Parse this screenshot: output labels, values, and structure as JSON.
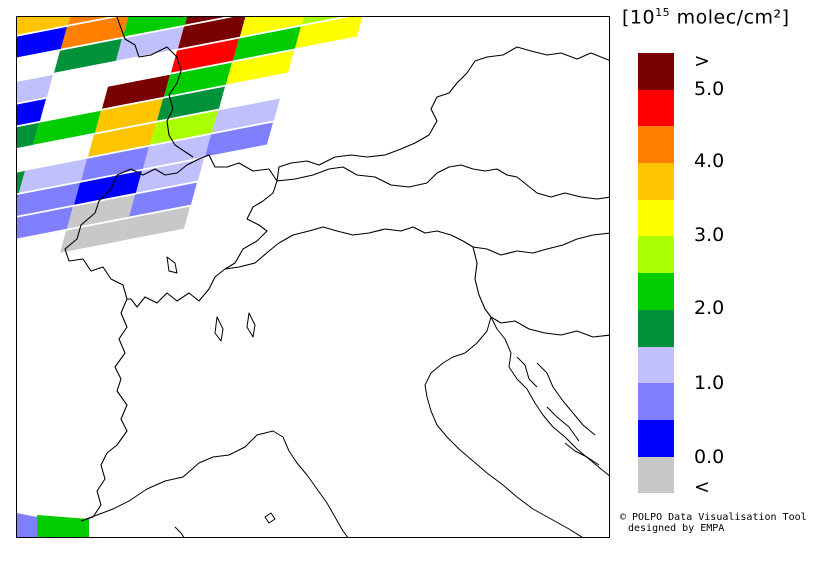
{
  "legend": {
    "unit_prefix": "[10",
    "unit_exp": "15",
    "unit_suffix": " molec/cm²]",
    "colors": [
      "#7a0000",
      "#ff0000",
      "#ff8000",
      "#ffc400",
      "#ffff00",
      "#aaff00",
      "#00cc00",
      "#00923a",
      "#c0c0ff",
      "#8080ff",
      "#0000ff",
      "#c8c8c8"
    ],
    "color_names": [
      "dark-red",
      "red",
      "orange",
      "amber",
      "yellow",
      "lime",
      "green",
      "dark-green",
      "pale-blue",
      "light-blue",
      "blue",
      "gray"
    ],
    "labels": [
      ">",
      "5.0",
      "4.0",
      "3.0",
      "2.0",
      "1.0",
      "0.0",
      "<"
    ]
  },
  "credit": {
    "line1": "© POLPO Data Visualisation Tool",
    "line2": "designed by EMPA"
  },
  "map": {
    "features": [
      "satellite-swath-north",
      "satellite-swath-south",
      "country-borders",
      "coastline"
    ]
  }
}
